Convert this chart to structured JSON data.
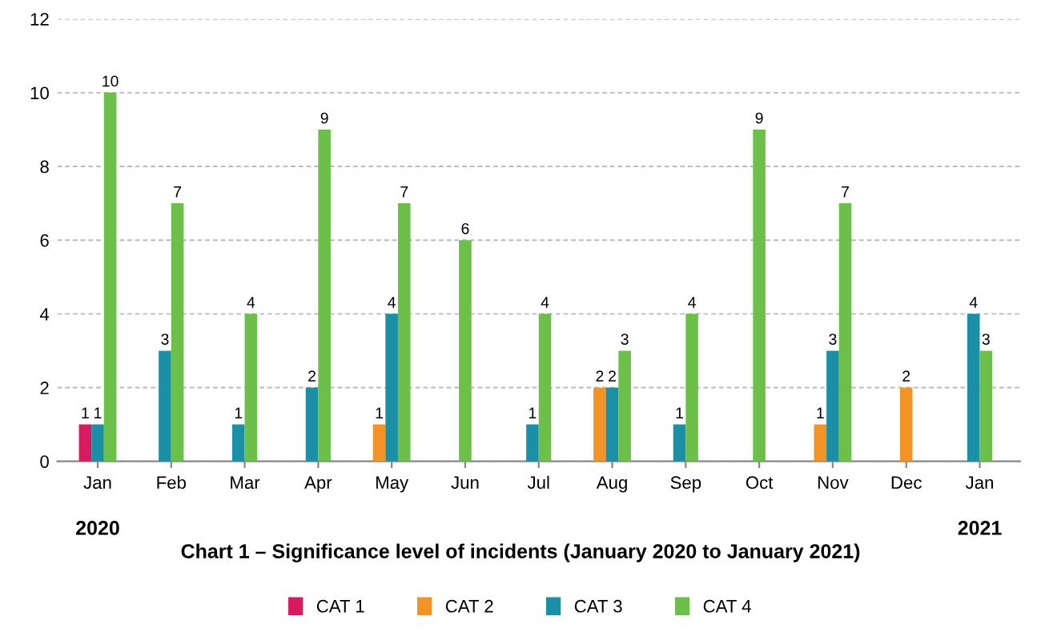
{
  "chart_data": {
    "type": "bar",
    "title": "Chart 1 – Significance level of incidents (January 2020 to January 2021)",
    "categories": [
      "Jan",
      "Feb",
      "Mar",
      "Apr",
      "May",
      "Jun",
      "Jul",
      "Aug",
      "Sep",
      "Oct",
      "Nov",
      "Dec",
      "Jan"
    ],
    "series": [
      {
        "name": "CAT 1",
        "color": "#d81b60",
        "values": [
          1,
          null,
          null,
          null,
          null,
          null,
          null,
          null,
          null,
          null,
          null,
          null,
          null
        ]
      },
      {
        "name": "CAT 2",
        "color": "#f39325",
        "values": [
          null,
          null,
          null,
          null,
          1,
          null,
          null,
          2,
          null,
          null,
          1,
          2,
          null
        ]
      },
      {
        "name": "CAT 3",
        "color": "#1a8fa6",
        "values": [
          1,
          3,
          1,
          2,
          4,
          null,
          1,
          2,
          1,
          null,
          3,
          null,
          4
        ]
      },
      {
        "name": "CAT 4",
        "color": "#6cc04a",
        "values": [
          10,
          7,
          4,
          9,
          7,
          6,
          4,
          3,
          4,
          9,
          7,
          null,
          3
        ]
      }
    ],
    "annotations": [
      "2020",
      "2021"
    ],
    "ylim": [
      0,
      12
    ],
    "yticks": [
      0,
      2,
      4,
      6,
      8,
      10,
      12
    ],
    "grid": "y",
    "legend": "bottom",
    "data_labels": true
  }
}
